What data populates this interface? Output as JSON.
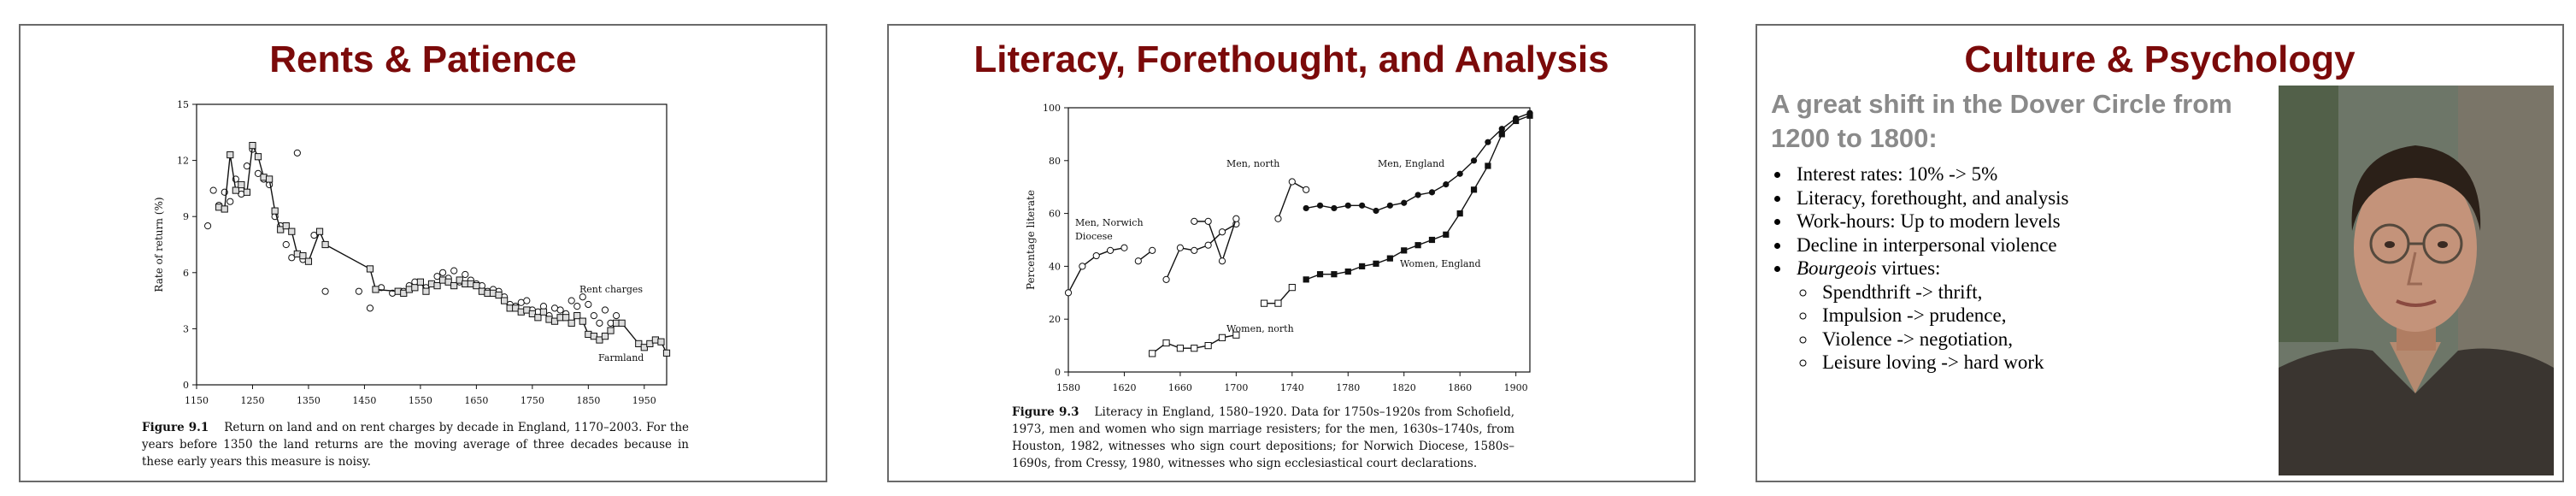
{
  "slides": [
    {
      "title": "Rents & Patience",
      "figure_label": "Figure 9.1",
      "caption": "Return on land and on rent charges by decade in England, 1170–2003. For the years before 1350 the land returns are the moving average of three decades because in these early years this measure is noisy."
    },
    {
      "title": "Literacy, Forethought, and Analysis",
      "figure_label": "Figure 9.3",
      "caption": "Literacy in England, 1580–1920. Data for 1750s–1920s from Schofield, 1973, men and women who sign marriage resisters; for the men, 1630s–1740s, from Houston, 1982, witnesses who sign court depositions; for Norwich Diocese, 1580s–1690s, from Cressy, 1980, witnesses who sign ecclesiastical court declarations."
    },
    {
      "title": "Culture & Psychology",
      "subtitle": "A great shift in the Dover Circle from 1200 to 1800:",
      "bullets": [
        "Interest rates: 10% -> 5%",
        "Literacy, forethought, and analysis",
        "Work-hours: Up to modern levels",
        "Decline in interpersonal violence"
      ],
      "bourgeois_label": "Bourgeois",
      "bourgeois_suffix": " virtues:",
      "sub_bullets": [
        "Spendthrift -> thrift,",
        "Impulsion -> prudence,",
        "Violence -> negotiation,",
        "Leisure loving -> hard work"
      ]
    }
  ],
  "chart_data": [
    {
      "type": "scatter",
      "ylabel": "Rate of return (%)",
      "xlabel": "",
      "xlim": [
        1150,
        1990
      ],
      "ylim": [
        0,
        15
      ],
      "x_ticks": [
        1150,
        1250,
        1350,
        1450,
        1550,
        1650,
        1750,
        1850,
        1950
      ],
      "y_ticks": [
        0,
        3,
        6,
        9,
        12,
        15
      ],
      "annotations": [
        "Rent charges",
        "Farmland"
      ],
      "series": [
        {
          "name": "Rent charges",
          "marker": "circle",
          "x": [
            1170,
            1180,
            1190,
            1200,
            1210,
            1220,
            1230,
            1240,
            1250,
            1260,
            1270,
            1280,
            1290,
            1300,
            1310,
            1320,
            1330,
            1340,
            1360,
            1380,
            1440,
            1460,
            1480,
            1500,
            1520,
            1530,
            1540,
            1560,
            1570,
            1580,
            1590,
            1600,
            1610,
            1620,
            1630,
            1640,
            1650,
            1660,
            1670,
            1680,
            1690,
            1700,
            1710,
            1720,
            1730,
            1740,
            1750,
            1760,
            1770,
            1780,
            1790,
            1800,
            1810,
            1820,
            1830,
            1840,
            1850,
            1860,
            1870,
            1880,
            1890,
            1900
          ],
          "y": [
            8.5,
            10.4,
            9.6,
            10.3,
            9.8,
            11.0,
            10.2,
            11.7,
            12.6,
            11.3,
            11.0,
            10.7,
            9.0,
            8.5,
            7.5,
            6.8,
            12.4,
            6.7,
            8.0,
            5.0,
            5.0,
            4.1,
            5.2,
            4.9,
            5.0,
            5.3,
            5.5,
            5.2,
            5.4,
            5.8,
            6.0,
            5.7,
            6.1,
            5.5,
            5.9,
            5.6,
            5.4,
            5.3,
            5.0,
            5.1,
            5.0,
            4.7,
            4.3,
            4.2,
            4.4,
            4.5,
            4.0,
            3.9,
            4.2,
            3.7,
            4.1,
            4.0,
            3.8,
            4.5,
            4.2,
            4.7,
            4.3,
            3.7,
            3.3,
            4.0,
            3.3,
            3.7
          ]
        },
        {
          "name": "Farmland",
          "marker": "square",
          "x": [
            1190,
            1200,
            1210,
            1220,
            1230,
            1240,
            1250,
            1260,
            1270,
            1280,
            1290,
            1300,
            1310,
            1320,
            1330,
            1340,
            1350,
            1370,
            1380,
            1460,
            1470,
            1510,
            1520,
            1530,
            1540,
            1550,
            1560,
            1570,
            1580,
            1590,
            1600,
            1610,
            1620,
            1630,
            1640,
            1650,
            1660,
            1670,
            1680,
            1690,
            1700,
            1710,
            1720,
            1730,
            1740,
            1750,
            1760,
            1770,
            1780,
            1790,
            1800,
            1810,
            1820,
            1830,
            1840,
            1850,
            1860,
            1870,
            1880,
            1890,
            1900,
            1910,
            1940,
            1950,
            1960,
            1970,
            1980,
            1990
          ],
          "y": [
            9.5,
            9.4,
            12.3,
            10.4,
            10.7,
            10.3,
            12.8,
            12.2,
            11.1,
            11.0,
            9.3,
            8.3,
            8.5,
            8.2,
            7.0,
            6.9,
            6.6,
            8.2,
            7.5,
            6.2,
            5.1,
            5.0,
            4.9,
            5.1,
            5.2,
            5.5,
            5.0,
            5.4,
            5.3,
            5.6,
            5.5,
            5.3,
            5.6,
            5.4,
            5.4,
            5.3,
            5.0,
            4.9,
            4.9,
            4.8,
            4.5,
            4.1,
            4.1,
            3.9,
            4.0,
            3.8,
            3.6,
            3.9,
            3.5,
            3.4,
            3.6,
            3.6,
            3.3,
            3.7,
            3.4,
            2.7,
            2.6,
            2.4,
            2.6,
            2.9,
            3.3,
            3.3,
            2.2,
            2.0,
            2.2,
            2.4,
            2.3,
            1.7
          ]
        }
      ]
    },
    {
      "type": "line",
      "ylabel": "Percentage literate",
      "xlabel": "",
      "xlim": [
        1580,
        1910
      ],
      "ylim": [
        0,
        100
      ],
      "x_ticks": [
        1580,
        1620,
        1660,
        1700,
        1740,
        1780,
        1820,
        1860,
        1900
      ],
      "y_ticks": [
        0,
        20,
        40,
        60,
        80,
        100
      ],
      "annotations": [
        "Men, north",
        "Men, England",
        "Men, Norwich",
        "Diocese",
        "Women, England",
        "Women, north"
      ],
      "series": [
        {
          "name": "Men, Norwich Diocese 1",
          "marker": "open-circle",
          "x": [
            1580,
            1590,
            1600,
            1610,
            1620
          ],
          "y": [
            30,
            40,
            44,
            46,
            47
          ]
        },
        {
          "name": "Men, Norwich Diocese 2",
          "marker": "open-circle",
          "x": [
            1630,
            1640
          ],
          "y": [
            42,
            46
          ]
        },
        {
          "name": "Men, Norwich Diocese 3",
          "marker": "open-circle",
          "x": [
            1650,
            1660,
            1670,
            1680,
            1690,
            1700
          ],
          "y": [
            35,
            47,
            46,
            48,
            53,
            56
          ]
        },
        {
          "name": "Men, north 1",
          "marker": "open-circle",
          "x": [
            1670,
            1680,
            1690,
            1700
          ],
          "y": [
            57,
            57,
            42,
            58
          ]
        },
        {
          "name": "Men, north 2",
          "marker": "open-circle",
          "x": [
            1730,
            1740,
            1750
          ],
          "y": [
            58,
            72,
            69
          ]
        },
        {
          "name": "Women, north 1",
          "marker": "open-square",
          "x": [
            1640,
            1650,
            1660,
            1670,
            1680,
            1690,
            1700
          ],
          "y": [
            7,
            11,
            9,
            9,
            10,
            13,
            14
          ]
        },
        {
          "name": "Women, north 2",
          "marker": "open-square",
          "x": [
            1720,
            1730,
            1740
          ],
          "y": [
            26,
            26,
            32
          ]
        },
        {
          "name": "Men, England",
          "marker": "filled-circle",
          "x": [
            1750,
            1760,
            1770,
            1780,
            1790,
            1800,
            1810,
            1820,
            1830,
            1840,
            1850,
            1860,
            1870,
            1880,
            1890,
            1900,
            1910
          ],
          "y": [
            62,
            63,
            62,
            63,
            63,
            61,
            63,
            64,
            67,
            68,
            71,
            75,
            80,
            87,
            92,
            96,
            98
          ]
        },
        {
          "name": "Women, England",
          "marker": "filled-square",
          "x": [
            1750,
            1760,
            1770,
            1780,
            1790,
            1800,
            1810,
            1820,
            1830,
            1840,
            1850,
            1860,
            1870,
            1880,
            1890,
            1900,
            1910
          ],
          "y": [
            35,
            37,
            37,
            38,
            40,
            41,
            43,
            46,
            48,
            50,
            52,
            60,
            69,
            78,
            90,
            95,
            97
          ]
        }
      ]
    }
  ]
}
